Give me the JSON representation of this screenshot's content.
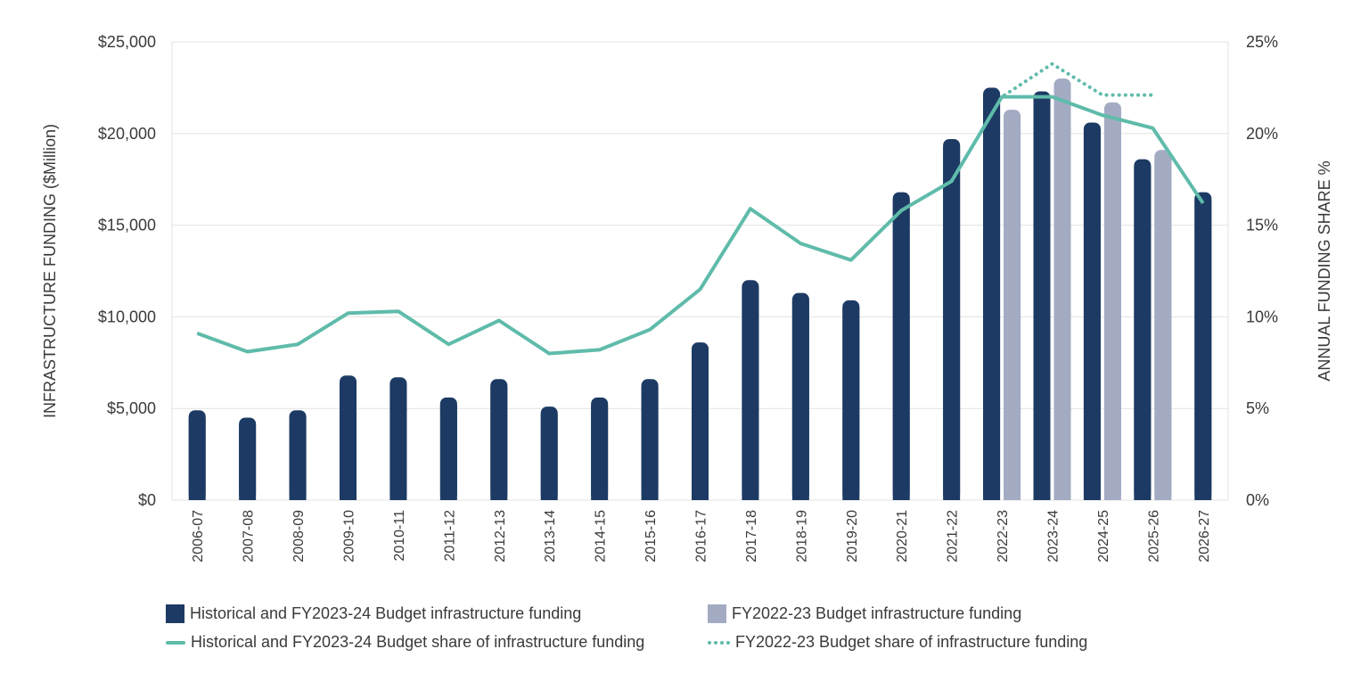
{
  "colors": {
    "historical_bar": "#1c3a63",
    "prior_bar": "#a3abc3",
    "historical_line": "#5fbbaa",
    "prior_line": "#5fbbaa",
    "grid": "#e3e3e3",
    "text": "#3a3a3a"
  },
  "chart_data": {
    "type": "bar",
    "categories": [
      "2006-07",
      "2007-08",
      "2008-09",
      "2009-10",
      "2010-11",
      "2011-12",
      "2012-13",
      "2013-14",
      "2014-15",
      "2015-16",
      "2016-17",
      "2017-18",
      "2018-19",
      "2019-20",
      "2020-21",
      "2021-22",
      "2022-23",
      "2023-24",
      "2024-25",
      "2025-26",
      "2026-27"
    ],
    "ylabel": "INFRASTRUCTURE FUNDING ($Million)",
    "y2label": "ANNUAL FUNDING SHARE %",
    "ylim": [
      0,
      25000
    ],
    "y2lim": [
      0,
      25
    ],
    "yticks": [
      "$0",
      "$5,000",
      "$10,000",
      "$15,000",
      "$20,000",
      "$25,000"
    ],
    "y2ticks": [
      "0%",
      "5%",
      "10%",
      "15%",
      "20%",
      "25%"
    ],
    "grid": true,
    "legend_position": "bottom",
    "series": [
      {
        "name": "Historical and FY2023-24 Budget infrastructure funding",
        "kind": "bar",
        "axis": "left",
        "values": [
          4900,
          4500,
          4900,
          6800,
          6700,
          5600,
          6600,
          5100,
          5600,
          6600,
          8600,
          12000,
          11300,
          10900,
          16800,
          19700,
          22500,
          22300,
          20600,
          18600,
          16800
        ]
      },
      {
        "name": "FY2022-23 Budget infrastructure funding",
        "kind": "bar",
        "axis": "left",
        "values": [
          null,
          null,
          null,
          null,
          null,
          null,
          null,
          null,
          null,
          null,
          null,
          null,
          null,
          null,
          null,
          null,
          21300,
          23000,
          21700,
          19100,
          null
        ]
      },
      {
        "name": "Historical and FY2023-24 Budget share of infrastructure funding",
        "kind": "line",
        "axis": "right",
        "values": [
          9.1,
          8.1,
          8.5,
          10.2,
          10.3,
          8.5,
          9.8,
          8.0,
          8.2,
          9.3,
          11.5,
          15.9,
          14.0,
          13.1,
          15.8,
          17.4,
          22.0,
          22.0,
          21.0,
          20.3,
          16.2
        ]
      },
      {
        "name": "FY2022-23 Budget share of infrastructure funding",
        "kind": "dotted-line",
        "axis": "right",
        "values": [
          null,
          null,
          null,
          null,
          null,
          null,
          null,
          null,
          null,
          null,
          null,
          null,
          null,
          null,
          null,
          17.4,
          22.0,
          23.8,
          22.1,
          22.1,
          null
        ]
      }
    ]
  }
}
